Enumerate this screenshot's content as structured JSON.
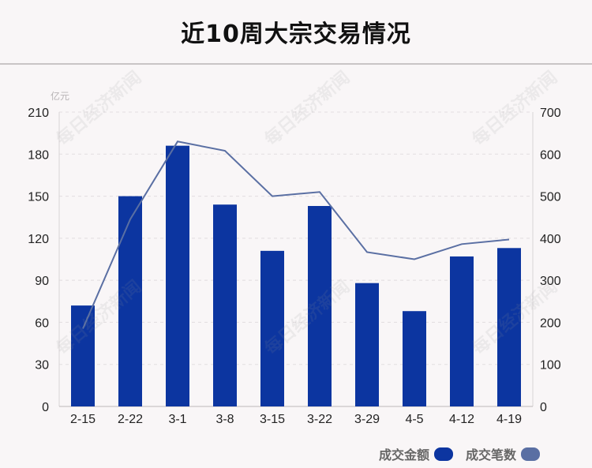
{
  "title": "近10周大宗交易情况",
  "watermark_text": "每日经济新闻",
  "chart_data": {
    "type": "bar+line",
    "categories": [
      "2-15",
      "2-22",
      "3-1",
      "3-8",
      "3-15",
      "3-22",
      "3-29",
      "4-5",
      "4-12",
      "4-19"
    ],
    "series": [
      {
        "name": "成交金额",
        "type": "bar",
        "axis": "left",
        "color": "#0c35a0",
        "values": [
          72,
          150,
          186,
          144,
          111,
          143,
          88,
          68,
          107,
          113
        ]
      },
      {
        "name": "成交笔数",
        "type": "line",
        "axis": "right",
        "color": "#5a6fa3",
        "values": [
          185,
          445,
          630,
          608,
          500,
          510,
          367,
          350,
          386,
          397
        ]
      }
    ],
    "left_axis": {
      "unit": "亿元",
      "ylim": [
        0,
        210
      ],
      "ticks": [
        0,
        30,
        60,
        90,
        120,
        150,
        180,
        210
      ]
    },
    "right_axis": {
      "ylim": [
        0,
        700
      ],
      "ticks": [
        0,
        100,
        200,
        300,
        400,
        500,
        600,
        700
      ]
    },
    "grid": true,
    "legend_position": "bottom-right"
  }
}
